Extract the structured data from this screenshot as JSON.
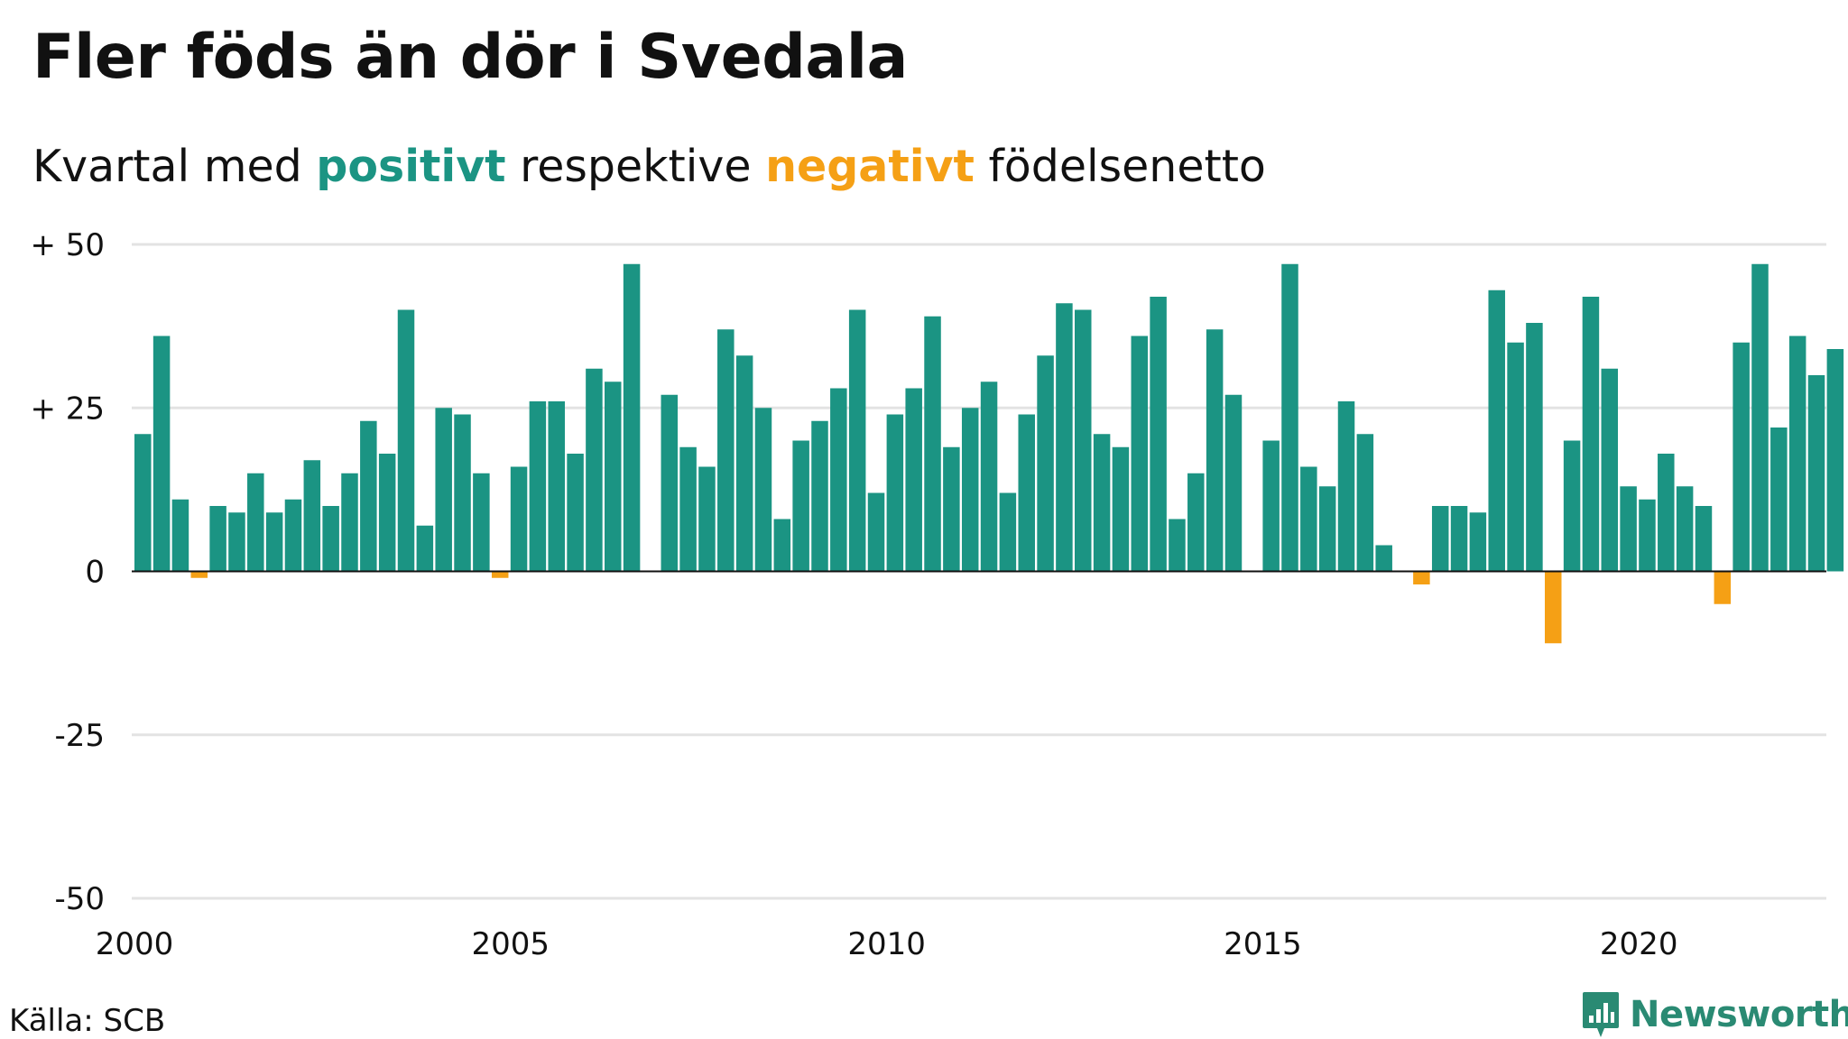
{
  "title": "Fler föds än dör i Svedala",
  "subtitle": {
    "part1": "Kvartal med ",
    "positive": "positivt",
    "part2": " respektive ",
    "negative": "negativt",
    "part3": " födelsenetto"
  },
  "colors": {
    "positive": "#1b9483",
    "negative": "#f5a015",
    "grid": "#e3e3e3",
    "baseline": "#111111",
    "brand": "#2a8a73"
  },
  "source": "Källa: SCB",
  "brand": {
    "name": "Newsworthy",
    "icon": "newsworthy-logo-icon"
  },
  "chart_data": {
    "type": "bar",
    "start": "2000 Q1",
    "interval": "quarter",
    "y_ticks": [
      {
        "value": 50,
        "label": "+ 50"
      },
      {
        "value": 25,
        "label": "+ 25"
      },
      {
        "value": 0,
        "label": "0"
      },
      {
        "value": -25,
        "label": "-25"
      },
      {
        "value": -50,
        "label": "-50"
      }
    ],
    "x_ticks": [
      "2000",
      "2005",
      "2010",
      "2015",
      "2020"
    ],
    "ylim": [
      -50,
      50
    ],
    "grid": true,
    "values": [
      21,
      36,
      11,
      -1,
      10,
      9,
      15,
      9,
      11,
      17,
      10,
      15,
      23,
      18,
      40,
      7,
      25,
      24,
      15,
      -1,
      16,
      26,
      26,
      18,
      31,
      29,
      47,
      0,
      27,
      19,
      16,
      37,
      33,
      25,
      8,
      20,
      23,
      28,
      40,
      12,
      24,
      28,
      39,
      19,
      25,
      29,
      12,
      24,
      33,
      41,
      40,
      21,
      19,
      36,
      42,
      8,
      15,
      37,
      27,
      0,
      20,
      47,
      16,
      13,
      26,
      21,
      4,
      0,
      -2,
      10,
      10,
      9,
      43,
      35,
      38,
      -11,
      20,
      42,
      31,
      13,
      11,
      18,
      13,
      10,
      -5,
      35,
      47,
      22,
      36,
      30,
      34
    ]
  }
}
